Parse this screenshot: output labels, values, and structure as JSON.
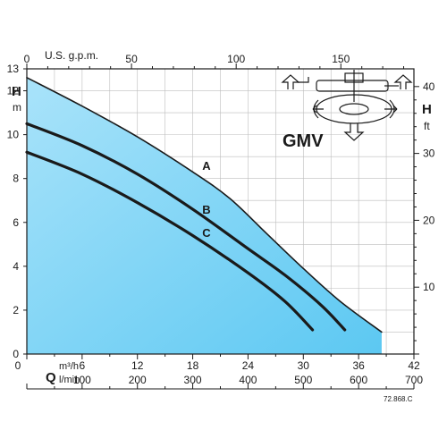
{
  "chart_data": {
    "type": "line",
    "model": "GMV",
    "code": "72.868.C",
    "fill_color": "#5cc8f2",
    "fill_color_light": "#a9e3fa",
    "line_color": "#1a1a1a",
    "axes": {
      "x_bottom_primary": {
        "symbol": "Q",
        "unit": "m³/h",
        "range": [
          0,
          42
        ],
        "ticks": [
          "0",
          "6",
          "12",
          "18",
          "24",
          "30",
          "36",
          "42"
        ]
      },
      "x_bottom_secondary": {
        "unit": "l/min",
        "range": [
          0,
          700
        ],
        "ticks": [
          "100",
          "200",
          "300",
          "400",
          "500",
          "600",
          "700"
        ]
      },
      "x_top": {
        "unit": "U.S. g.p.m.",
        "range": [
          0,
          184.9
        ],
        "ticks": [
          "0",
          "50",
          "100",
          "150"
        ]
      },
      "y_left": {
        "symbol": "H",
        "unit": "m",
        "range": [
          0,
          13
        ],
        "ticks": [
          "0",
          "2",
          "4",
          "6",
          "8",
          "10",
          "12",
          "13"
        ]
      },
      "y_right": {
        "symbol": "H",
        "unit": "ft",
        "range": [
          0,
          42.65
        ],
        "ticks": [
          "10",
          "20",
          "30",
          "40"
        ]
      }
    },
    "series": [
      {
        "name": "A",
        "x": [
          0,
          6,
          12,
          18,
          22,
          26,
          30,
          34,
          38.5
        ],
        "y": [
          12.6,
          11.3,
          9.9,
          8.3,
          7.1,
          5.5,
          3.9,
          2.4,
          1.0
        ]
      },
      {
        "name": "B",
        "x": [
          0,
          6,
          12,
          18,
          24,
          28,
          32,
          34.5
        ],
        "y": [
          10.5,
          9.5,
          8.2,
          6.6,
          4.8,
          3.6,
          2.2,
          1.1
        ]
      },
      {
        "name": "C",
        "x": [
          0,
          6,
          12,
          18,
          24,
          28,
          31
        ],
        "y": [
          9.2,
          8.2,
          6.9,
          5.4,
          3.7,
          2.4,
          1.1
        ]
      }
    ],
    "grid": true
  }
}
